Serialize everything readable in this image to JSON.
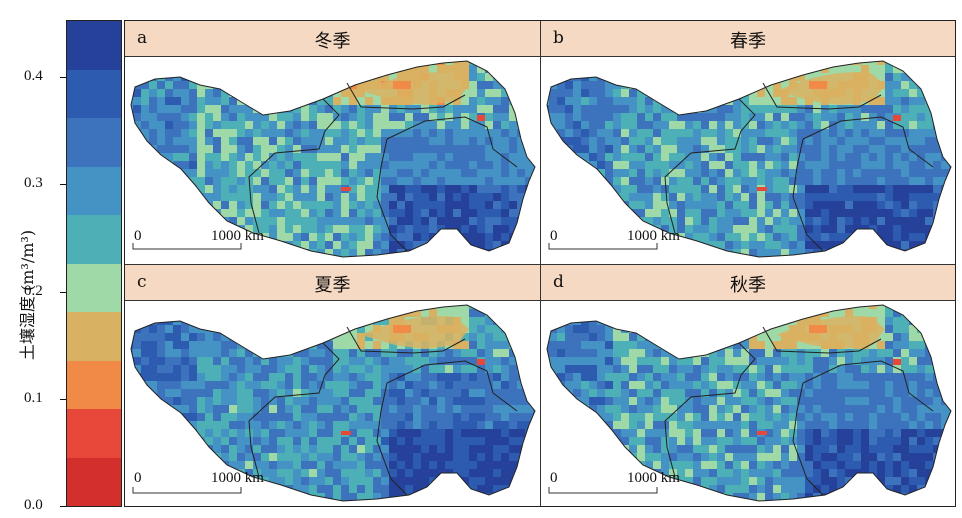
{
  "colorbar": {
    "label": "土壤湿度 (m³/m³)",
    "ticks": [
      "0.4",
      "0.3",
      "0.2",
      "0.1",
      "0.0"
    ],
    "colors": [
      "#26419a",
      "#2d5bb0",
      "#3c73bc",
      "#4592c4",
      "#4eb0b7",
      "#9fd9a8",
      "#d9b162",
      "#f08a46",
      "#e8483a",
      "#d22f2d"
    ],
    "range": [
      0.0,
      0.45
    ]
  },
  "panels": [
    {
      "letter": "a",
      "title": "冬季"
    },
    {
      "letter": "b",
      "title": "春季"
    },
    {
      "letter": "c",
      "title": "夏季"
    },
    {
      "letter": "d",
      "title": "秋季"
    }
  ],
  "scalebar": {
    "start": "0",
    "end": "1000 km"
  },
  "legend_colors": {
    "low": "#d22f2d",
    "mid": "#9fd9a8",
    "high": "#26419a",
    "header_bg": "#f6d9c2"
  }
}
